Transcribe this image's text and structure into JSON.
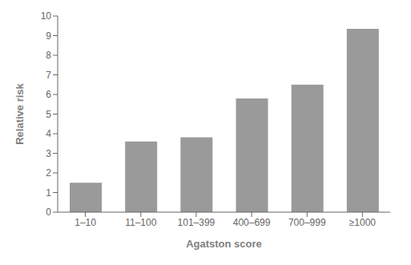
{
  "chart_data": {
    "type": "bar",
    "categories": [
      "1–10",
      "11–100",
      "101–399",
      "400–699",
      "700–999",
      "≥1000"
    ],
    "values": [
      1.5,
      3.6,
      3.82,
      5.8,
      6.5,
      9.35
    ],
    "color": "#9a9a9a",
    "xlabel": "Agatston score",
    "ylabel": "Relative risk",
    "ylim": [
      0,
      10
    ],
    "yticks": [
      0,
      1,
      2,
      3,
      4,
      5,
      6,
      7,
      8,
      9,
      10
    ],
    "grid": false
  }
}
